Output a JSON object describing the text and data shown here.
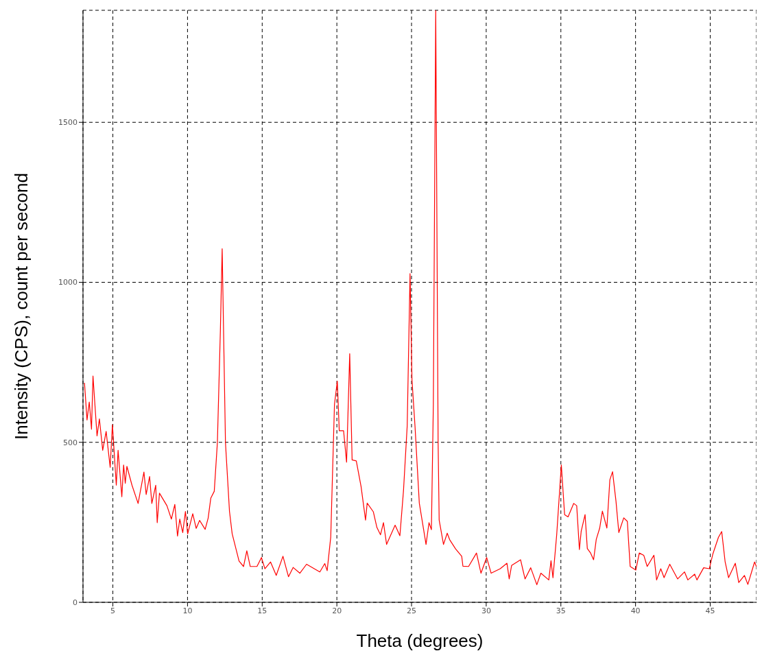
{
  "chart_data": {
    "type": "line",
    "xlabel": "Theta (degrees)",
    "ylabel": "Intensity (CPS), count per second",
    "x": [
      3.1,
      3.27,
      3.42,
      3.57,
      3.67,
      3.94,
      4.1,
      4.32,
      4.55,
      4.82,
      4.97,
      5.23,
      5.35,
      5.6,
      5.72,
      5.83,
      5.94,
      6.28,
      6.69,
      7.08,
      7.23,
      7.46,
      7.61,
      7.87,
      7.97,
      8.12,
      8.62,
      8.92,
      9.15,
      9.33,
      9.48,
      9.68,
      9.86,
      10.01,
      10.35,
      10.58,
      10.81,
      11.18,
      11.38,
      11.56,
      11.79,
      12.0,
      12.2,
      12.32,
      12.54,
      12.81,
      12.99,
      13.45,
      13.75,
      13.97,
      14.2,
      14.65,
      14.95,
      15.18,
      15.56,
      15.94,
      16.39,
      16.76,
      17.07,
      17.52,
      17.97,
      18.86,
      19.19,
      19.35,
      19.59,
      19.84,
      20.03,
      20.16,
      20.45,
      20.65,
      20.86,
      21.02,
      21.3,
      21.62,
      21.92,
      22.03,
      22.44,
      22.68,
      22.92,
      23.12,
      23.33,
      23.9,
      24.22,
      24.46,
      24.71,
      24.9,
      25.03,
      25.23,
      25.52,
      25.81,
      25.97,
      26.17,
      26.33,
      26.46,
      26.62,
      26.78,
      26.85,
      27.14,
      27.39,
      27.55,
      27.95,
      28.36,
      28.44,
      28.82,
      29.35,
      29.65,
      30.03,
      30.33,
      30.94,
      31.39,
      31.54,
      31.7,
      32.3,
      32.6,
      32.98,
      33.39,
      33.66,
      34.19,
      34.34,
      34.47,
      34.72,
      35.03,
      35.25,
      35.48,
      35.86,
      36.06,
      36.24,
      36.36,
      36.62,
      36.77,
      36.99,
      37.19,
      37.37,
      37.6,
      37.78,
      38.08,
      38.28,
      38.46,
      38.69,
      38.88,
      39.21,
      39.45,
      39.64,
      40.02,
      40.25,
      40.55,
      40.78,
      41.23,
      41.41,
      41.69,
      41.91,
      42.29,
      42.82,
      43.28,
      43.5,
      43.96,
      44.11,
      44.56,
      44.94,
      45.17,
      45.55,
      45.77,
      46.0,
      46.23,
      46.68,
      46.91,
      47.29,
      47.52,
      47.97,
      48.09
    ],
    "series": [
      {
        "color": "#ff0000",
        "values": [
          686,
          570,
          626,
          541,
          707,
          520,
          573,
          475,
          534,
          422,
          555,
          366,
          475,
          330,
          429,
          372,
          425,
          366,
          309,
          407,
          337,
          393,
          309,
          366,
          249,
          341,
          302,
          260,
          306,
          207,
          260,
          218,
          284,
          214,
          277,
          231,
          256,
          228,
          263,
          326,
          347,
          500,
          850,
          1105,
          499,
          284,
          214,
          129,
          112,
          161,
          112,
          112,
          140,
          105,
          126,
          84,
          144,
          80,
          109,
          91,
          119,
          95,
          121,
          99,
          204,
          619,
          691,
          536,
          536,
          438,
          777,
          445,
          442,
          362,
          257,
          310,
          283,
          234,
          211,
          249,
          181,
          241,
          208,
          348,
          552,
          1027,
          695,
          552,
          310,
          227,
          181,
          249,
          227,
          619,
          1850,
          500,
          257,
          181,
          216,
          196,
          167,
          144,
          113,
          112,
          154,
          91,
          140,
          91,
          105,
          122,
          73,
          115,
          133,
          73,
          108,
          55,
          91,
          70,
          130,
          77,
          211,
          429,
          274,
          267,
          309,
          302,
          165,
          222,
          274,
          168,
          154,
          133,
          197,
          232,
          285,
          232,
          383,
          408,
          316,
          218,
          264,
          253,
          112,
          101,
          154,
          147,
          112,
          147,
          70,
          105,
          77,
          119,
          73,
          95,
          70,
          88,
          70,
          108,
          105,
          150,
          203,
          221,
          126,
          77,
          122,
          62,
          84,
          56,
          126,
          112
        ]
      }
    ],
    "xlim": [
      3.0,
      48.1
    ],
    "xticks": [
      5,
      10,
      15,
      20,
      25,
      30,
      35,
      40,
      45
    ],
    "ylim": [
      0,
      1850
    ],
    "yticks": [
      0,
      500,
      1000,
      1500
    ],
    "grid": true,
    "marker": "none",
    "line_style": "solid"
  }
}
